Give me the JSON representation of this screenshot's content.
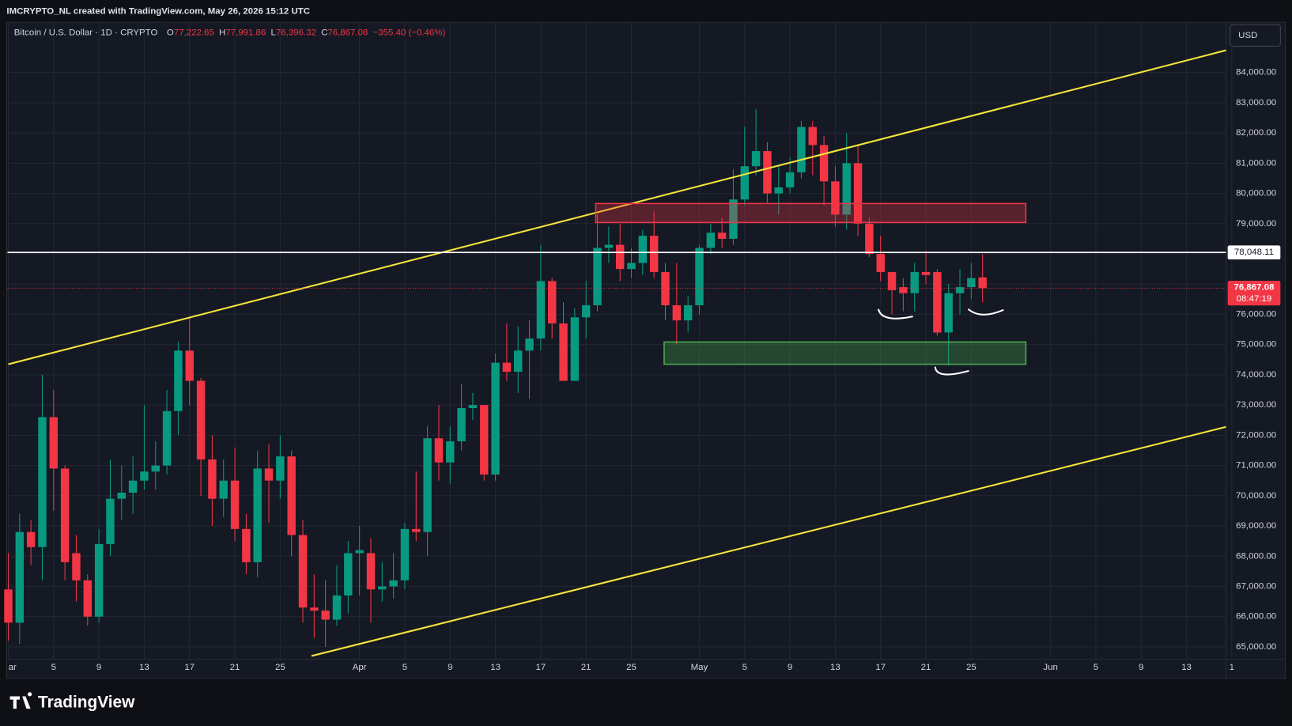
{
  "header": {
    "title": "IMCRYPTO_NL created with TradingView.com, May 26, 2026 15:12 UTC",
    "currency": "USD",
    "brand": "TradingView"
  },
  "chart_data": {
    "type": "candlestick",
    "legend": {
      "symbol": "Bitcoin / U.S. Dollar · 1D · CRYPTO",
      "items": [
        {
          "key": "O",
          "value": "77,222.65"
        },
        {
          "key": "H",
          "value": "77,991.86"
        },
        {
          "key": "L",
          "value": "76,396.32"
        },
        {
          "key": "C",
          "value": "76,867.08"
        }
      ],
      "change": "−355.40 (−0.46%)"
    },
    "categories": [
      "ar",
      null,
      null,
      null,
      "5",
      null,
      null,
      null,
      "9",
      null,
      null,
      null,
      "13",
      null,
      null,
      null,
      "17",
      null,
      null,
      null,
      "21",
      null,
      null,
      null,
      "25",
      null,
      null,
      null,
      null,
      null,
      null,
      "Apr",
      null,
      null,
      null,
      "5",
      null,
      null,
      null,
      "9",
      null,
      null,
      null,
      "13",
      null,
      null,
      null,
      "17",
      null,
      null,
      null,
      "21",
      null,
      null,
      null,
      "25",
      null,
      null,
      null,
      null,
      null,
      "May",
      null,
      null,
      null,
      "5",
      null,
      null,
      null,
      "9",
      null,
      null,
      null,
      "13",
      null,
      null,
      null,
      "17",
      null,
      null,
      null,
      "21",
      null,
      null,
      null,
      "25",
      null,
      null,
      null,
      null,
      null,
      null,
      "Jun",
      null,
      null,
      null,
      "5",
      null,
      null,
      null,
      "9",
      null,
      null,
      null,
      "13",
      null,
      null,
      null,
      "1"
    ],
    "open": [
      66900,
      65800,
      68800,
      68300,
      72600,
      70900,
      68100,
      67200,
      66000,
      68400,
      69900,
      70100,
      70500,
      70800,
      71000,
      72800,
      74800,
      73800,
      71200,
      69900,
      70500,
      68900,
      67800,
      70900,
      70500,
      71300,
      68700,
      66300,
      66200,
      65900,
      66700,
      68100,
      68100,
      66900,
      67000,
      67200,
      68900,
      68800,
      71900,
      71100,
      71800,
      72900,
      73000,
      70700,
      74400,
      74100,
      74800,
      75200,
      77100,
      75700,
      73800,
      75900,
      76300,
      78200,
      78300,
      77500,
      77700,
      78600,
      77400,
      76300,
      75800,
      76300,
      78200,
      78700,
      78500,
      79800,
      80900,
      81400,
      80000,
      80200,
      80700,
      82200,
      81600,
      80400,
      79300,
      81000,
      79000,
      78000,
      77400,
      76900,
      76700,
      77400,
      77400,
      75400,
      76700,
      76900,
      77222.65,
      null,
      null,
      null,
      null,
      null,
      null,
      null,
      null,
      null,
      null,
      null,
      null,
      null,
      null,
      null,
      null,
      null,
      null,
      null,
      null,
      null,
      null
    ],
    "high": [
      68100,
      69400,
      69200,
      74000,
      73500,
      71000,
      68700,
      67400,
      68900,
      71200,
      71000,
      71300,
      73000,
      71800,
      73500,
      75100,
      75900,
      73900,
      72000,
      71200,
      71600,
      69400,
      71500,
      71700,
      72000,
      71500,
      69200,
      67400,
      67200,
      67700,
      68500,
      69000,
      68600,
      67800,
      68100,
      69100,
      70800,
      72300,
      73000,
      72300,
      73700,
      73400,
      73000,
      74700,
      75700,
      75600,
      75800,
      78300,
      77200,
      76400,
      76200,
      77100,
      79300,
      78900,
      79000,
      78200,
      78800,
      79400,
      77700,
      77700,
      76600,
      78300,
      79000,
      79200,
      80800,
      82200,
      82800,
      81700,
      80900,
      81200,
      82400,
      82400,
      81900,
      80900,
      82000,
      81600,
      79200,
      78600,
      77400,
      77200,
      77700,
      78100,
      77500,
      77000,
      77500,
      77700,
      77991.86,
      null,
      null,
      null,
      null,
      null,
      null,
      null,
      null,
      null,
      null,
      null,
      null,
      null,
      null,
      null,
      null,
      null,
      null,
      null,
      null,
      null,
      null
    ],
    "low": [
      65200,
      65100,
      67700,
      67200,
      69500,
      67200,
      66500,
      65700,
      65800,
      68000,
      69200,
      69400,
      70200,
      70200,
      70700,
      72000,
      73000,
      70000,
      69000,
      69300,
      68500,
      67400,
      67300,
      69100,
      69900,
      68000,
      65800,
      65300,
      65000,
      65700,
      66100,
      66700,
      65800,
      66500,
      66600,
      66900,
      68500,
      68000,
      70500,
      70400,
      71500,
      72500,
      70500,
      70500,
      73800,
      73400,
      73200,
      74800,
      75200,
      73800,
      73800,
      75200,
      76100,
      77700,
      77100,
      77200,
      77300,
      77200,
      75800,
      75000,
      75400,
      76000,
      78000,
      78200,
      78300,
      79600,
      80600,
      79700,
      79300,
      80000,
      80500,
      80600,
      79600,
      78900,
      78800,
      78600,
      77900,
      77100,
      76000,
      76100,
      76100,
      77000,
      75300,
      74300,
      76000,
      76500,
      76396.32,
      null,
      null,
      null,
      null,
      null,
      null,
      null,
      null,
      null,
      null,
      null,
      null,
      null,
      null,
      null,
      null,
      null,
      null,
      null,
      null,
      null,
      null
    ],
    "close": [
      65800,
      68800,
      68300,
      72600,
      70900,
      67800,
      67200,
      66000,
      68400,
      69900,
      70100,
      70500,
      70800,
      71000,
      72800,
      74800,
      73800,
      71200,
      69900,
      70500,
      68900,
      67800,
      70900,
      70500,
      71300,
      68700,
      66300,
      66200,
      65900,
      66700,
      68100,
      68200,
      66900,
      67000,
      67200,
      68900,
      68800,
      71900,
      71100,
      71800,
      72900,
      73000,
      70700,
      74400,
      74100,
      74800,
      75200,
      77100,
      75700,
      73800,
      75900,
      76300,
      78200,
      78300,
      77500,
      77700,
      78600,
      77400,
      76300,
      75800,
      76300,
      78200,
      78700,
      78500,
      79800,
      80900,
      81400,
      80000,
      80200,
      80700,
      82200,
      81600,
      80400,
      79300,
      81000,
      79000,
      78000,
      77400,
      76800,
      76700,
      77400,
      77300,
      75400,
      76700,
      76900,
      77200,
      76867.08,
      null,
      null,
      null,
      null,
      null,
      null,
      null,
      null,
      null,
      null,
      null,
      null,
      null,
      null,
      null,
      null,
      null,
      null,
      null,
      null,
      null,
      null
    ],
    "up_color": "#089981",
    "down_color": "#f23645",
    "ylim": [
      64590,
      85636
    ],
    "yticks": [
      {
        "value": 65000,
        "label": "65,000.00"
      },
      {
        "value": 66000,
        "label": "66,000.00"
      },
      {
        "value": 67000,
        "label": "67,000.00"
      },
      {
        "value": 68000,
        "label": "68,000.00"
      },
      {
        "value": 69000,
        "label": "69,000.00"
      },
      {
        "value": 70000,
        "label": "70,000.00"
      },
      {
        "value": 71000,
        "label": "71,000.00"
      },
      {
        "value": 72000,
        "label": "72,000.00"
      },
      {
        "value": 73000,
        "label": "73,000.00"
      },
      {
        "value": 74000,
        "label": "74,000.00"
      },
      {
        "value": 75000,
        "label": "75,000.00"
      },
      {
        "value": 76000,
        "label": "76,000.00"
      },
      {
        "value": 77000,
        "label": "77,000.00"
      },
      {
        "value": 78000,
        "label": "78,000.00"
      },
      {
        "value": 79000,
        "label": "79,000.00"
      },
      {
        "value": 80000,
        "label": "80,000.00"
      },
      {
        "value": 81000,
        "label": "81,000.00"
      },
      {
        "value": 82000,
        "label": "82,000.00"
      },
      {
        "value": 83000,
        "label": "83,000.00"
      },
      {
        "value": 84000,
        "label": "84,000.00"
      }
    ],
    "grid": true,
    "price_line": {
      "value": 78048.11,
      "label": "78,048.11",
      "color": "#ffffff"
    },
    "last_price": {
      "value": 76867.08,
      "label": "76,867.08",
      "countdown": "08:47:19",
      "color": "#f23645"
    }
  }
}
